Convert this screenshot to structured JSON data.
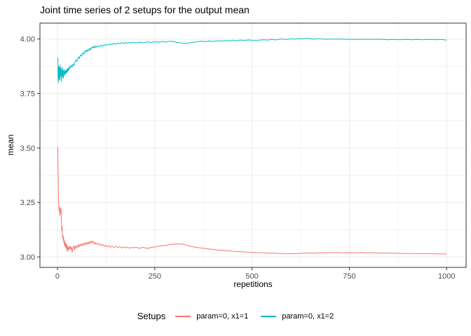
{
  "chart_data": {
    "type": "line",
    "title": "Joint time series of 2 setups for the output mean",
    "xlabel": "repetitions",
    "ylabel": "mean",
    "xlim": [
      -45,
      1050
    ],
    "ylim": [
      2.952,
      4.073
    ],
    "x_ticks": [
      0,
      250,
      500,
      750,
      1000
    ],
    "x_tick_labels": [
      "0",
      "250",
      "500",
      "750",
      "1000"
    ],
    "x_minor_ticks": [
      125,
      375,
      625,
      875
    ],
    "y_ticks": [
      3.0,
      3.25,
      3.5,
      3.75,
      4.0
    ],
    "y_tick_labels": [
      "3.00",
      "3.25",
      "3.50",
      "3.75",
      "4.00"
    ],
    "y_minor_ticks": [
      3.125,
      3.375,
      3.625,
      3.875
    ],
    "grid": true,
    "colors": {
      "panel_background": "#ffffff",
      "panel_border": "#333333",
      "grid_major": "#ebebeb",
      "grid_minor": "#f4f4f4",
      "tick_mark": "#333333",
      "tick_label": "#4d4d4d"
    },
    "legend": {
      "title": "Setups",
      "position": "bottom"
    },
    "series": [
      {
        "name": "param=0, x1=1",
        "color": "#F8766D",
        "points": [
          [
            1,
            3.505
          ],
          [
            2,
            3.35
          ],
          [
            3,
            3.24
          ],
          [
            4,
            3.215
          ],
          [
            5,
            3.23
          ],
          [
            6,
            3.19
          ],
          [
            7,
            3.22
          ],
          [
            8,
            3.2
          ],
          [
            9,
            3.225
          ],
          [
            10,
            3.18
          ],
          [
            11,
            3.12
          ],
          [
            12,
            3.14
          ],
          [
            13,
            3.09
          ],
          [
            14,
            3.1
          ],
          [
            15,
            3.075
          ],
          [
            16,
            3.09
          ],
          [
            17,
            3.06
          ],
          [
            18,
            3.075
          ],
          [
            19,
            3.05
          ],
          [
            20,
            3.065
          ],
          [
            21,
            3.045
          ],
          [
            22,
            3.06
          ],
          [
            23,
            3.038
          ],
          [
            24,
            3.055
          ],
          [
            25,
            3.025
          ],
          [
            26,
            3.048
          ],
          [
            27,
            3.04
          ],
          [
            28,
            3.03
          ],
          [
            29,
            3.046
          ],
          [
            30,
            3.035
          ],
          [
            32,
            3.05
          ],
          [
            34,
            3.034
          ],
          [
            36,
            3.046
          ],
          [
            38,
            3.022
          ],
          [
            40,
            3.042
          ],
          [
            42,
            3.052
          ],
          [
            44,
            3.032
          ],
          [
            46,
            3.05
          ],
          [
            48,
            3.04
          ],
          [
            50,
            3.052
          ],
          [
            52,
            3.044
          ],
          [
            54,
            3.056
          ],
          [
            56,
            3.046
          ],
          [
            58,
            3.058
          ],
          [
            60,
            3.05
          ],
          [
            62,
            3.06
          ],
          [
            64,
            3.052
          ],
          [
            66,
            3.062
          ],
          [
            68,
            3.054
          ],
          [
            70,
            3.064
          ],
          [
            72,
            3.056
          ],
          [
            74,
            3.066
          ],
          [
            76,
            3.058
          ],
          [
            78,
            3.068
          ],
          [
            80,
            3.06
          ],
          [
            82,
            3.07
          ],
          [
            84,
            3.062
          ],
          [
            86,
            3.072
          ],
          [
            88,
            3.064
          ],
          [
            90,
            3.074
          ],
          [
            92,
            3.066
          ],
          [
            94,
            3.06
          ],
          [
            96,
            3.068
          ],
          [
            98,
            3.058
          ],
          [
            100,
            3.064
          ],
          [
            104,
            3.056
          ],
          [
            108,
            3.062
          ],
          [
            112,
            3.052
          ],
          [
            116,
            3.058
          ],
          [
            120,
            3.048
          ],
          [
            124,
            3.054
          ],
          [
            128,
            3.046
          ],
          [
            132,
            3.052
          ],
          [
            136,
            3.044
          ],
          [
            140,
            3.05
          ],
          [
            145,
            3.044
          ],
          [
            150,
            3.048
          ],
          [
            155,
            3.043
          ],
          [
            160,
            3.047
          ],
          [
            165,
            3.042
          ],
          [
            170,
            3.046
          ],
          [
            175,
            3.041
          ],
          [
            180,
            3.045
          ],
          [
            185,
            3.04
          ],
          [
            190,
            3.044
          ],
          [
            195,
            3.041
          ],
          [
            200,
            3.045
          ],
          [
            210,
            3.04
          ],
          [
            220,
            3.044
          ],
          [
            230,
            3.039
          ],
          [
            240,
            3.043
          ],
          [
            250,
            3.046
          ],
          [
            260,
            3.049
          ],
          [
            270,
            3.052
          ],
          [
            280,
            3.054
          ],
          [
            290,
            3.057
          ],
          [
            300,
            3.059
          ],
          [
            310,
            3.061
          ],
          [
            315,
            3.058
          ],
          [
            320,
            3.06
          ],
          [
            330,
            3.054
          ],
          [
            340,
            3.05
          ],
          [
            350,
            3.046
          ],
          [
            360,
            3.043
          ],
          [
            370,
            3.041
          ],
          [
            380,
            3.038
          ],
          [
            390,
            3.036
          ],
          [
            400,
            3.034
          ],
          [
            410,
            3.032
          ],
          [
            420,
            3.031
          ],
          [
            430,
            3.029
          ],
          [
            440,
            3.028
          ],
          [
            450,
            3.026
          ],
          [
            460,
            3.025
          ],
          [
            470,
            3.024
          ],
          [
            480,
            3.023
          ],
          [
            490,
            3.022
          ],
          [
            500,
            3.021
          ],
          [
            510,
            3.02
          ],
          [
            520,
            3.019
          ],
          [
            530,
            3.019
          ],
          [
            540,
            3.018
          ],
          [
            550,
            3.017
          ],
          [
            560,
            3.017
          ],
          [
            570,
            3.016
          ],
          [
            580,
            3.016
          ],
          [
            590,
            3.015
          ],
          [
            600,
            3.015
          ],
          [
            615,
            3.016
          ],
          [
            630,
            3.017
          ],
          [
            645,
            3.018
          ],
          [
            660,
            3.018
          ],
          [
            675,
            3.019
          ],
          [
            690,
            3.019
          ],
          [
            705,
            3.02
          ],
          [
            720,
            3.02
          ],
          [
            735,
            3.019
          ],
          [
            750,
            3.02
          ],
          [
            765,
            3.019
          ],
          [
            780,
            3.02
          ],
          [
            795,
            3.019
          ],
          [
            810,
            3.019
          ],
          [
            825,
            3.018
          ],
          [
            840,
            3.018
          ],
          [
            855,
            3.017
          ],
          [
            870,
            3.017
          ],
          [
            885,
            3.016
          ],
          [
            900,
            3.016
          ],
          [
            915,
            3.016
          ],
          [
            930,
            3.015
          ],
          [
            945,
            3.015
          ],
          [
            960,
            3.015
          ],
          [
            975,
            3.014
          ],
          [
            990,
            3.014
          ],
          [
            1000,
            3.014
          ]
        ]
      },
      {
        "name": "param=0, x1=2",
        "color": "#00BFC4",
        "points": [
          [
            1,
            3.915
          ],
          [
            2,
            3.8
          ],
          [
            3,
            3.875
          ],
          [
            4,
            3.815
          ],
          [
            5,
            3.87
          ],
          [
            6,
            3.81
          ],
          [
            7,
            3.88
          ],
          [
            8,
            3.83
          ],
          [
            9,
            3.865
          ],
          [
            10,
            3.805
          ],
          [
            11,
            3.85
          ],
          [
            12,
            3.87
          ],
          [
            13,
            3.825
          ],
          [
            14,
            3.858
          ],
          [
            15,
            3.82
          ],
          [
            16,
            3.845
          ],
          [
            17,
            3.862
          ],
          [
            18,
            3.832
          ],
          [
            19,
            3.852
          ],
          [
            20,
            3.84
          ],
          [
            21,
            3.855
          ],
          [
            22,
            3.842
          ],
          [
            23,
            3.858
          ],
          [
            24,
            3.846
          ],
          [
            25,
            3.862
          ],
          [
            26,
            3.85
          ],
          [
            27,
            3.865
          ],
          [
            28,
            3.855
          ],
          [
            29,
            3.87
          ],
          [
            30,
            3.86
          ],
          [
            32,
            3.875
          ],
          [
            34,
            3.868
          ],
          [
            36,
            3.88
          ],
          [
            38,
            3.872
          ],
          [
            40,
            3.885
          ],
          [
            42,
            3.878
          ],
          [
            44,
            3.89
          ],
          [
            46,
            3.898
          ],
          [
            48,
            3.905
          ],
          [
            50,
            3.898
          ],
          [
            52,
            3.91
          ],
          [
            54,
            3.918
          ],
          [
            56,
            3.91
          ],
          [
            58,
            3.922
          ],
          [
            60,
            3.928
          ],
          [
            62,
            3.92
          ],
          [
            64,
            3.932
          ],
          [
            66,
            3.938
          ],
          [
            68,
            3.93
          ],
          [
            70,
            3.942
          ],
          [
            72,
            3.948
          ],
          [
            74,
            3.94
          ],
          [
            76,
            3.95
          ],
          [
            78,
            3.944
          ],
          [
            80,
            3.954
          ],
          [
            82,
            3.948
          ],
          [
            84,
            3.958
          ],
          [
            86,
            3.952
          ],
          [
            88,
            3.96
          ],
          [
            90,
            3.965
          ],
          [
            92,
            3.958
          ],
          [
            94,
            3.966
          ],
          [
            96,
            3.96
          ],
          [
            98,
            3.968
          ],
          [
            100,
            3.962
          ],
          [
            104,
            3.97
          ],
          [
            108,
            3.964
          ],
          [
            112,
            3.972
          ],
          [
            116,
            3.966
          ],
          [
            120,
            3.974
          ],
          [
            124,
            3.97
          ],
          [
            128,
            3.976
          ],
          [
            132,
            3.972
          ],
          [
            136,
            3.978
          ],
          [
            140,
            3.974
          ],
          [
            145,
            3.98
          ],
          [
            150,
            3.976
          ],
          [
            155,
            3.982
          ],
          [
            160,
            3.978
          ],
          [
            165,
            3.983
          ],
          [
            170,
            3.979
          ],
          [
            175,
            3.984
          ],
          [
            180,
            3.98
          ],
          [
            185,
            3.985
          ],
          [
            190,
            3.981
          ],
          [
            195,
            3.986
          ],
          [
            200,
            3.982
          ],
          [
            210,
            3.986
          ],
          [
            220,
            3.983
          ],
          [
            230,
            3.987
          ],
          [
            240,
            3.984
          ],
          [
            250,
            3.988
          ],
          [
            260,
            3.985
          ],
          [
            270,
            3.989
          ],
          [
            280,
            3.986
          ],
          [
            290,
            3.99
          ],
          [
            300,
            3.987
          ],
          [
            310,
            3.984
          ],
          [
            320,
            3.981
          ],
          [
            330,
            3.979
          ],
          [
            340,
            3.982
          ],
          [
            350,
            3.985
          ],
          [
            360,
            3.988
          ],
          [
            370,
            3.99
          ],
          [
            380,
            3.988
          ],
          [
            390,
            3.991
          ],
          [
            400,
            3.989
          ],
          [
            410,
            3.992
          ],
          [
            420,
            3.99
          ],
          [
            430,
            3.993
          ],
          [
            440,
            3.991
          ],
          [
            450,
            3.994
          ],
          [
            460,
            3.992
          ],
          [
            470,
            3.995
          ],
          [
            480,
            3.993
          ],
          [
            490,
            3.996
          ],
          [
            500,
            3.994
          ],
          [
            510,
            3.992
          ],
          [
            520,
            3.995
          ],
          [
            530,
            3.997
          ],
          [
            540,
            3.995
          ],
          [
            550,
            3.998
          ],
          [
            560,
            3.996
          ],
          [
            570,
            3.999
          ],
          [
            580,
            4.0
          ],
          [
            590,
            3.998
          ],
          [
            600,
            4.001
          ],
          [
            610,
            3.999
          ],
          [
            620,
            4.002
          ],
          [
            630,
            4.0
          ],
          [
            640,
            4.003
          ],
          [
            650,
            4.001
          ],
          [
            660,
            3.999
          ],
          [
            670,
            4.002
          ],
          [
            680,
            4.0
          ],
          [
            690,
            3.998
          ],
          [
            700,
            4.0
          ],
          [
            715,
            3.999
          ],
          [
            730,
            4.0
          ],
          [
            745,
            3.998
          ],
          [
            760,
            3.999
          ],
          [
            775,
            3.998
          ],
          [
            790,
            3.999
          ],
          [
            805,
            3.998
          ],
          [
            820,
            3.999
          ],
          [
            835,
            3.998
          ],
          [
            850,
            3.997
          ],
          [
            865,
            3.998
          ],
          [
            880,
            3.997
          ],
          [
            895,
            3.998
          ],
          [
            910,
            3.997
          ],
          [
            925,
            3.998
          ],
          [
            940,
            3.997
          ],
          [
            955,
            3.998
          ],
          [
            970,
            3.997
          ],
          [
            985,
            3.998
          ],
          [
            1000,
            3.995
          ]
        ]
      }
    ]
  }
}
